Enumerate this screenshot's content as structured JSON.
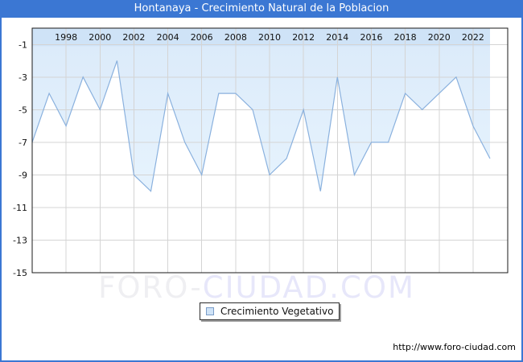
{
  "chart_data": {
    "type": "area",
    "title": "Hontanaya - Crecimiento Natural de la Poblacion",
    "xlabel": "",
    "ylabel": "",
    "x": [
      1996,
      1997,
      1998,
      1999,
      2000,
      2001,
      2002,
      2003,
      2004,
      2005,
      2006,
      2007,
      2008,
      2009,
      2010,
      2011,
      2012,
      2013,
      2014,
      2015,
      2016,
      2017,
      2018,
      2019,
      2020,
      2021,
      2022,
      2023
    ],
    "series": [
      {
        "name": "Crecimiento Vegetativo",
        "values": [
          -7,
          -4,
          -6,
          -3,
          -5,
          -2,
          -9,
          -10,
          -4,
          -7,
          -9,
          -4,
          -4,
          -5,
          -9,
          -8,
          -5,
          -10,
          -3,
          -9,
          -7,
          -7,
          -4,
          -5,
          -4,
          -3,
          -6,
          -8
        ]
      }
    ],
    "ylim": [
      -15,
      0
    ],
    "yticks": [
      -1,
      -3,
      -5,
      -7,
      -9,
      -11,
      -13,
      -15
    ],
    "xticks": [
      1998,
      2000,
      2002,
      2004,
      2006,
      2008,
      2010,
      2012,
      2014,
      2016,
      2018,
      2020,
      2022
    ],
    "grid": true,
    "legend_position": "bottom-center"
  },
  "legend": {
    "label": "Crecimiento Vegetativo"
  },
  "watermark": {
    "part1": "FORO-",
    "part2": "CIUDAD.COM"
  },
  "footer": {
    "url": "http://www.foro-ciudad.com"
  },
  "colors": {
    "titlebar": "#3b77d3",
    "outer_border": "#3b77d3",
    "line": "#8ab1de",
    "fill_top": "#cfe3f7",
    "fill_mid": "#dcebfa",
    "fill_bottom": "#e5f2fd",
    "grid": "#d4d4d4",
    "axis": "#1a1a1a",
    "tick_text": "#111111",
    "watermark_gray": "#efeff2",
    "watermark_blue": "#e7e7fa"
  }
}
